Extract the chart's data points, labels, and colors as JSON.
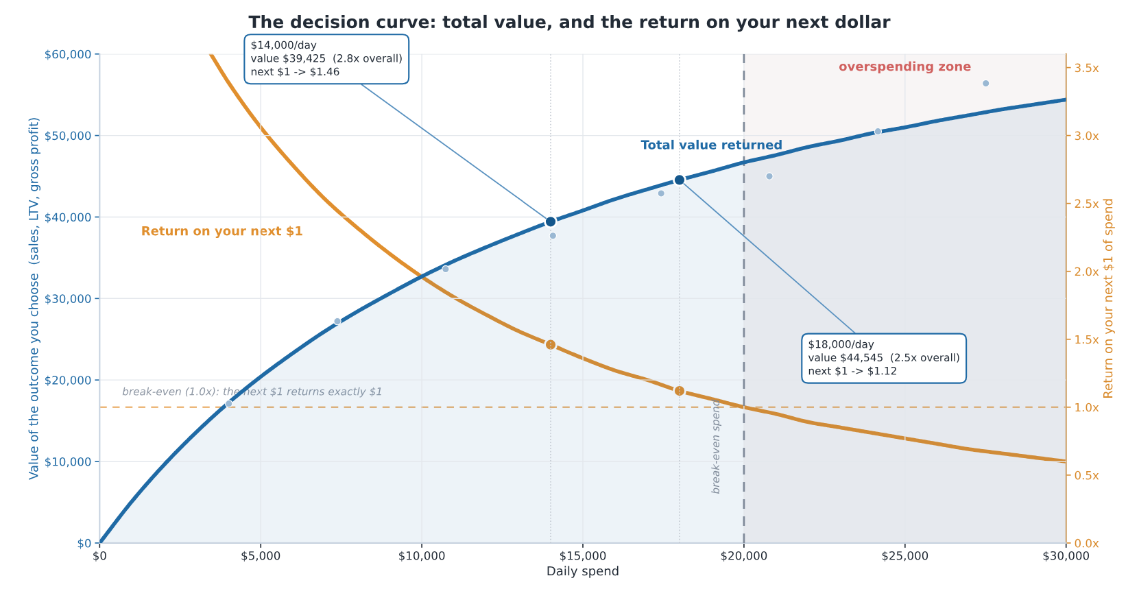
{
  "chart_data": {
    "type": "line",
    "title": "The decision curve: total value, and the return on your next dollar",
    "xlabel": "Daily spend",
    "ylabel": "Value of the outcome you choose  (sales, LTV, gross profit)",
    "y2label": "Return on your next $1 of spend",
    "xlim": [
      0,
      30000
    ],
    "ylim": [
      0,
      60000
    ],
    "y2lim": [
      0,
      3.6
    ],
    "xticks": [
      {
        "value": 0,
        "label": "$0"
      },
      {
        "value": 5000,
        "label": "$5,000"
      },
      {
        "value": 10000,
        "label": "$10,000"
      },
      {
        "value": 15000,
        "label": "$15,000"
      },
      {
        "value": 20000,
        "label": "$20,000"
      },
      {
        "value": 25000,
        "label": "$25,000"
      },
      {
        "value": 30000,
        "label": "$30,000"
      }
    ],
    "yticks": [
      {
        "value": 0,
        "label": "$0"
      },
      {
        "value": 10000,
        "label": "$10,000"
      },
      {
        "value": 20000,
        "label": "$20,000"
      },
      {
        "value": 30000,
        "label": "$30,000"
      },
      {
        "value": 40000,
        "label": "$40,000"
      },
      {
        "value": 50000,
        "label": "$50,000"
      },
      {
        "value": 60000,
        "label": "$60,000"
      }
    ],
    "y2ticks": [
      {
        "value": 0,
        "label": "0.0x"
      },
      {
        "value": 0.5,
        "label": "0.5x"
      },
      {
        "value": 1.0,
        "label": "1.0x"
      },
      {
        "value": 1.5,
        "label": "1.5x"
      },
      {
        "value": 2.0,
        "label": "2.0x"
      },
      {
        "value": 2.5,
        "label": "2.5x"
      },
      {
        "value": 3.0,
        "label": "3.0x"
      },
      {
        "value": 3.5,
        "label": "3.5x"
      }
    ],
    "grid": true,
    "legend": false,
    "series": [
      {
        "name": "Total value returned",
        "type": "area",
        "color": "#1f6aa5",
        "marker": "none",
        "x": [
          0,
          1000,
          2000,
          3000,
          4000,
          5000,
          6000,
          7000,
          8000,
          9000,
          10000,
          11000,
          12000,
          13000,
          14000,
          15000,
          16000,
          17000,
          18000,
          19000,
          20000,
          21000,
          22000,
          23000,
          24000,
          25000,
          26000,
          27000,
          28000,
          29000,
          30000
        ],
        "values": [
          0,
          5100,
          9600,
          13600,
          17200,
          20400,
          23300,
          26000,
          28400,
          30600,
          32700,
          34600,
          36300,
          37900,
          39425,
          40800,
          42200,
          43400,
          44545,
          45600,
          46700,
          47600,
          48600,
          49400,
          50300,
          51000,
          51800,
          52500,
          53200,
          53800,
          54400
        ]
      },
      {
        "name": "Return on your next $1",
        "axis": "y2",
        "color": "#e08f2e",
        "marker": "none",
        "x": [
          3450,
          4000,
          5000,
          6000,
          7000,
          8000,
          9000,
          10000,
          11000,
          12000,
          13000,
          14000,
          15000,
          16000,
          17000,
          18000,
          19000,
          20000,
          21000,
          22000,
          23000,
          24000,
          25000,
          26000,
          27000,
          28000,
          29000,
          30000
        ],
        "values": [
          3.6,
          3.39,
          3.06,
          2.78,
          2.53,
          2.32,
          2.13,
          1.96,
          1.81,
          1.68,
          1.56,
          1.46,
          1.36,
          1.27,
          1.2,
          1.12,
          1.06,
          1.0,
          0.95,
          0.89,
          0.85,
          0.81,
          0.77,
          0.73,
          0.69,
          0.66,
          0.63,
          0.6
        ]
      },
      {
        "type": "scatter",
        "color": "#9ab8d3",
        "marker": "circle",
        "x": [
          4010,
          7380,
          10740,
          14070,
          17430,
          20790,
          24160,
          27510
        ],
        "values": [
          17100,
          27200,
          33600,
          37700,
          42900,
          45000,
          50500,
          56400
        ]
      },
      {
        "type": "scatter",
        "color": "#14578c",
        "marker": "circle",
        "x": [
          14000,
          18000
        ],
        "values": [
          39425,
          44545
        ]
      },
      {
        "type": "scatter",
        "axis": "y2",
        "color": "#e08f2e",
        "marker": "circle",
        "x": [
          14000,
          18000
        ],
        "values": [
          1.46,
          1.12
        ]
      }
    ],
    "ref_lines": [
      {
        "axis": "y2",
        "value": 1.0,
        "label": "break-even (1.0x): the next $1 returns exactly $1",
        "color": "#e8a65a",
        "line_style": "dashed"
      },
      {
        "axis": "x",
        "value": 20000,
        "label": "break-even spend",
        "color": "#7f8a99",
        "line_style": "dashed"
      },
      {
        "axis": "x",
        "value": 14000,
        "color": "#c4cad2",
        "line_style": "dotted"
      },
      {
        "axis": "x",
        "value": 18000,
        "color": "#c4cad2",
        "line_style": "dotted"
      }
    ],
    "bands": [
      {
        "axis": "x",
        "from": 20000,
        "to": 30000,
        "label": "overspending zone",
        "color": "#c9a9a9"
      }
    ],
    "annotations": [
      {
        "text": "$14,000/day\nvalue $39,425  (2.8x overall)\nnext $1 -> $1.46",
        "x": 14000,
        "y": 39425
      },
      {
        "text": "$18,000/day\nvalue $44,545  (2.5x overall)\nnext $1 -> $1.12",
        "x": 18000,
        "y": 44545
      }
    ]
  }
}
